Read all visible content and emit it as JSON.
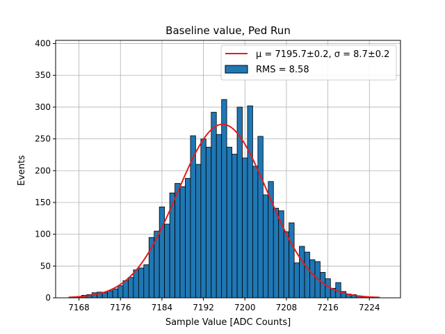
{
  "chart_data": {
    "type": "bar",
    "title": "Baseline value, Ped Run",
    "xlabel": "Sample Value [ADC Counts]",
    "ylabel": "Events",
    "xlim": [
      7163.5,
      7230.0
    ],
    "ylim": [
      0,
      405
    ],
    "xticks": [
      7168,
      7176,
      7184,
      7192,
      7200,
      7208,
      7216,
      7224
    ],
    "yticks": [
      0,
      50,
      100,
      150,
      200,
      250,
      300,
      350,
      400
    ],
    "grid": true,
    "legend_position": "top-right",
    "bin_width": 1,
    "bars": {
      "name": "RMS = 8.58",
      "color": "#1f77b4",
      "edgecolor": "#000000",
      "x": [
        7166,
        7167,
        7168,
        7169,
        7170,
        7171,
        7172,
        7173,
        7174,
        7175,
        7176,
        7177,
        7178,
        7179,
        7180,
        7181,
        7182,
        7183,
        7184,
        7185,
        7186,
        7187,
        7188,
        7189,
        7190,
        7191,
        7192,
        7193,
        7194,
        7195,
        7196,
        7197,
        7198,
        7199,
        7200,
        7201,
        7202,
        7203,
        7204,
        7205,
        7206,
        7207,
        7208,
        7209,
        7210,
        7211,
        7212,
        7213,
        7214,
        7215,
        7216,
        7217,
        7218,
        7219,
        7220,
        7221,
        7222,
        7223,
        7224,
        7225
      ],
      "values": [
        0,
        1,
        2,
        4,
        5,
        8,
        9,
        8,
        11,
        14,
        19,
        27,
        32,
        44,
        47,
        52,
        95,
        105,
        143,
        116,
        165,
        180,
        175,
        188,
        255,
        210,
        250,
        237,
        292,
        257,
        312,
        237,
        226,
        300,
        220,
        302,
        207,
        254,
        162,
        183,
        141,
        137,
        104,
        118,
        55,
        81,
        72,
        60,
        57,
        40,
        30,
        15,
        24,
        10,
        6,
        5,
        3,
        2,
        1,
        0
      ]
    },
    "fit_curve": {
      "name": "μ = 7195.7±0.2, σ = 8.7±0.2",
      "color": "#e41a1c",
      "mu": 7195.7,
      "sigma": 8.7,
      "amplitude": 273,
      "x_range": [
        7166,
        7226
      ]
    }
  }
}
